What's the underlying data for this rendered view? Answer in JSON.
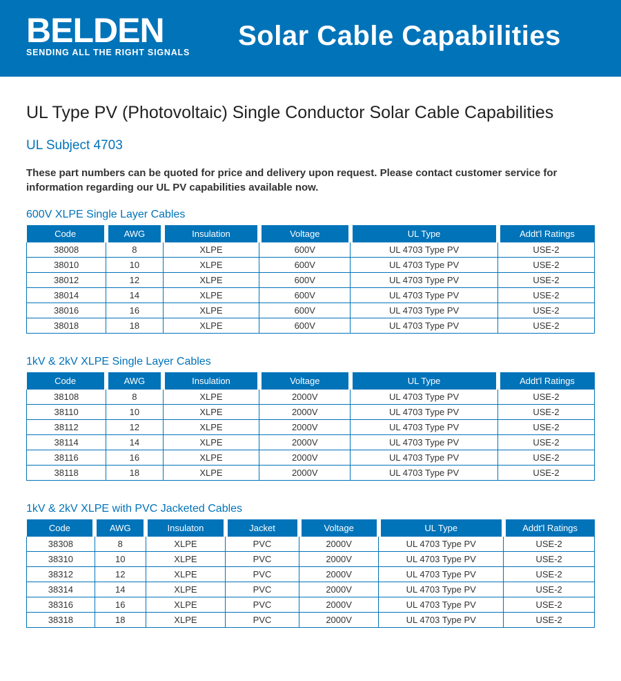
{
  "colors": {
    "brand_blue": "#0073b9",
    "white": "#ffffff",
    "text_dark": "#333333",
    "text_black": "#222222"
  },
  "header": {
    "brand": "BELDEN",
    "tagline": "SENDING ALL THE RIGHT SIGNALS",
    "title": "Solar Cable Capabilities"
  },
  "main_title": "UL Type PV (Photovoltaic) Single Conductor Solar Cable Capabilities",
  "subject": "UL Subject 4703",
  "intro": "These part numbers can be quoted for price and delivery upon request. Please contact customer service for information regarding our UL PV capabilities available now.",
  "tables": [
    {
      "title": "600V XLPE Single Layer Cables",
      "widths": [
        "14%",
        "10%",
        "17%",
        "16%",
        "26%",
        "17%"
      ],
      "columns": [
        "Code",
        "AWG",
        "Insulation",
        "Voltage",
        "UL Type",
        "Addt'l Ratings"
      ],
      "rows": [
        [
          "38008",
          "8",
          "XLPE",
          "600V",
          "UL 4703 Type PV",
          "USE-2"
        ],
        [
          "38010",
          "10",
          "XLPE",
          "600V",
          "UL 4703 Type PV",
          "USE-2"
        ],
        [
          "38012",
          "12",
          "XLPE",
          "600V",
          "UL 4703 Type PV",
          "USE-2"
        ],
        [
          "38014",
          "14",
          "XLPE",
          "600V",
          "UL 4703 Type PV",
          "USE-2"
        ],
        [
          "38016",
          "16",
          "XLPE",
          "600V",
          "UL 4703 Type PV",
          "USE-2"
        ],
        [
          "38018",
          "18",
          "XLPE",
          "600V",
          "UL 4703 Type PV",
          "USE-2"
        ]
      ]
    },
    {
      "title": "1kV & 2kV XLPE Single Layer Cables",
      "widths": [
        "14%",
        "10%",
        "17%",
        "16%",
        "26%",
        "17%"
      ],
      "columns": [
        "Code",
        "AWG",
        "Insulation",
        "Voltage",
        "UL Type",
        "Addt'l Ratings"
      ],
      "rows": [
        [
          "38108",
          "8",
          "XLPE",
          "2000V",
          "UL 4703 Type PV",
          "USE-2"
        ],
        [
          "38110",
          "10",
          "XLPE",
          "2000V",
          "UL 4703 Type PV",
          "USE-2"
        ],
        [
          "38112",
          "12",
          "XLPE",
          "2000V",
          "UL 4703 Type PV",
          "USE-2"
        ],
        [
          "38114",
          "14",
          "XLPE",
          "2000V",
          "UL 4703 Type PV",
          "USE-2"
        ],
        [
          "38116",
          "16",
          "XLPE",
          "2000V",
          "UL 4703 Type PV",
          "USE-2"
        ],
        [
          "38118",
          "18",
          "XLPE",
          "2000V",
          "UL 4703 Type PV",
          "USE-2"
        ]
      ]
    },
    {
      "title": "1kV & 2kV XLPE with PVC Jacketed Cables",
      "widths": [
        "12%",
        "9%",
        "14%",
        "13%",
        "14%",
        "22%",
        "16%"
      ],
      "columns": [
        "Code",
        "AWG",
        "Insulaton",
        "Jacket",
        "Voltage",
        "UL Type",
        "Addt'l Ratings"
      ],
      "rows": [
        [
          "38308",
          "8",
          "XLPE",
          "PVC",
          "2000V",
          "UL 4703 Type PV",
          "USE-2"
        ],
        [
          "38310",
          "10",
          "XLPE",
          "PVC",
          "2000V",
          "UL 4703 Type PV",
          "USE-2"
        ],
        [
          "38312",
          "12",
          "XLPE",
          "PVC",
          "2000V",
          "UL 4703 Type PV",
          "USE-2"
        ],
        [
          "38314",
          "14",
          "XLPE",
          "PVC",
          "2000V",
          "UL 4703 Type PV",
          "USE-2"
        ],
        [
          "38316",
          "16",
          "XLPE",
          "PVC",
          "2000V",
          "UL 4703 Type PV",
          "USE-2"
        ],
        [
          "38318",
          "18",
          "XLPE",
          "PVC",
          "2000V",
          "UL 4703 Type PV",
          "USE-2"
        ]
      ]
    }
  ]
}
